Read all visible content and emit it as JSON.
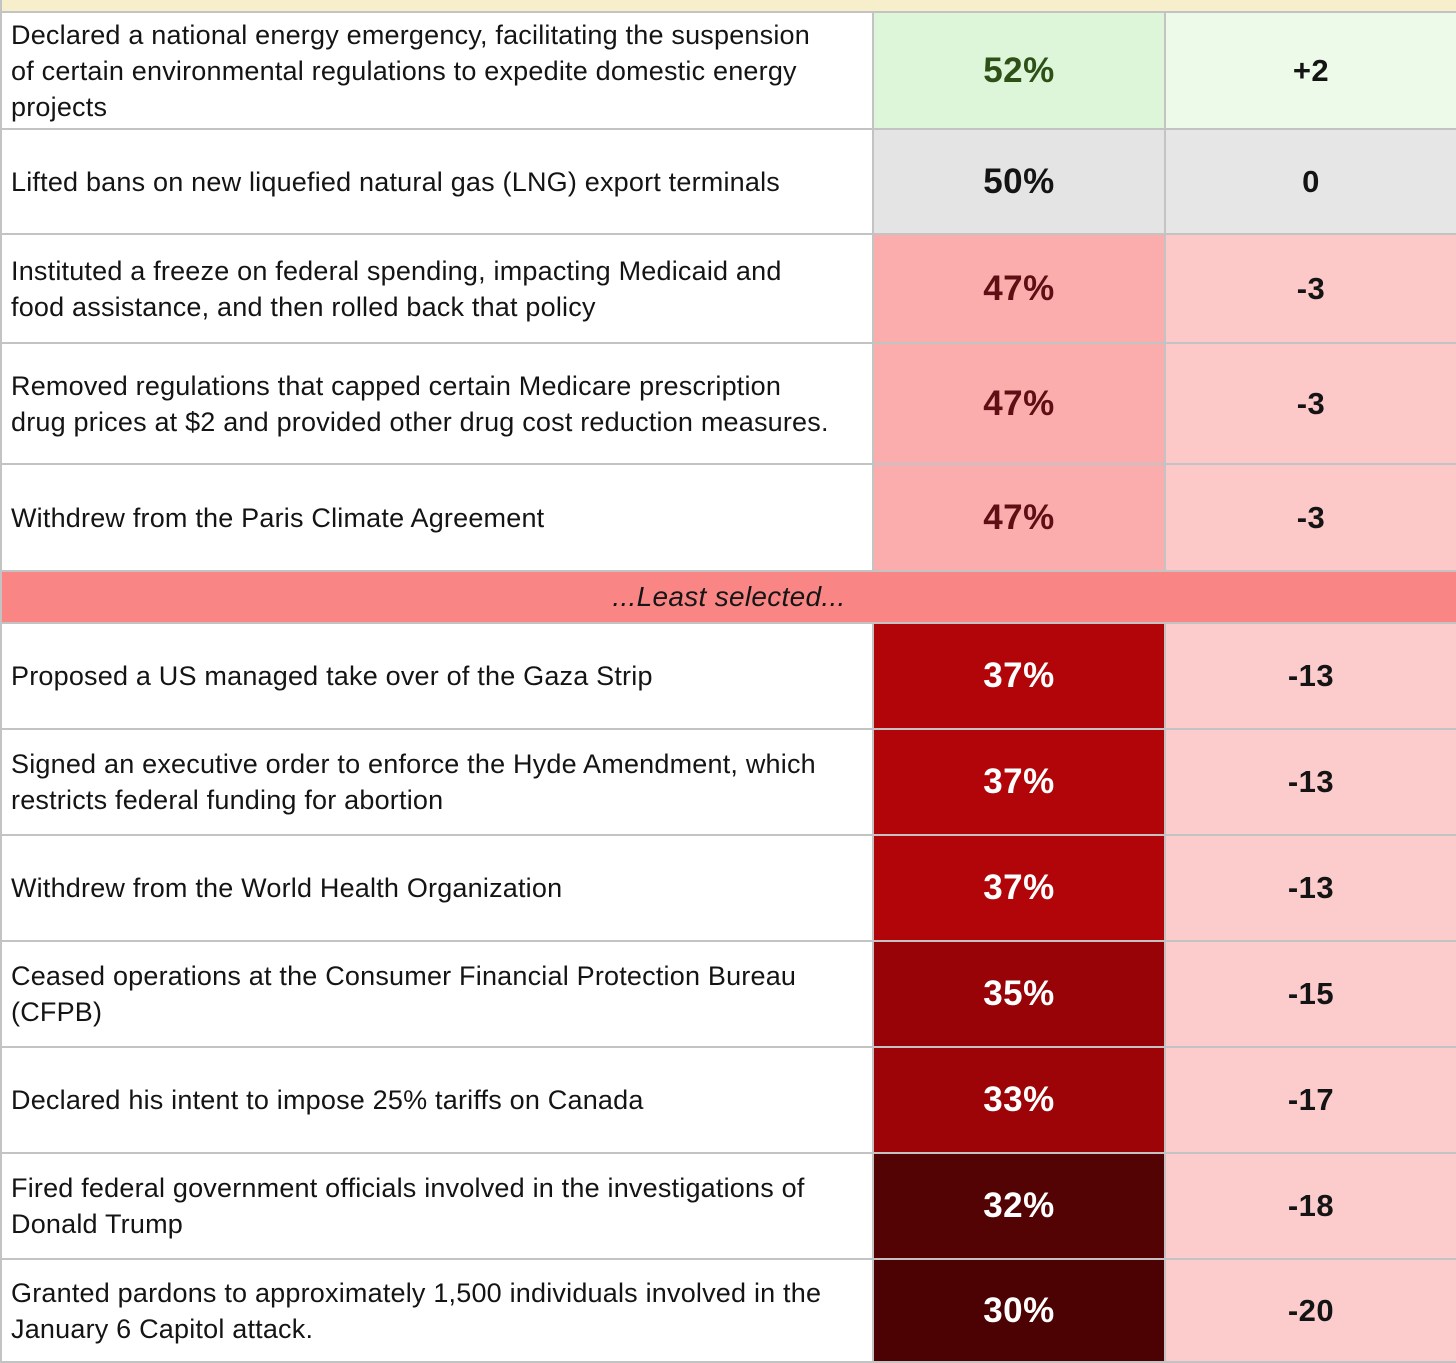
{
  "table": {
    "rows": [
      {
        "desc": "Declared a national energy emergency, facilitating the suspension of certain environmental regulations to expedite domestic energy projects",
        "pct": "52%",
        "diff": "+2",
        "pct_bg": "#ddf5d8",
        "pct_fg": "#2d5016",
        "diff_bg": "#edfae9",
        "diff_fg": "#141414"
      },
      {
        "desc": "Lifted bans on new liquefied natural gas (LNG) export terminals",
        "pct": "50%",
        "diff": "0",
        "pct_bg": "#e4e4e4",
        "pct_fg": "#141414",
        "diff_bg": "#e6e6e6",
        "diff_fg": "#141414"
      },
      {
        "desc": "Instituted a freeze on federal spending, impacting Medicaid and food assistance, and then rolled back that policy",
        "pct": "47%",
        "diff": "-3",
        "pct_bg": "#fbacac",
        "pct_fg": "#5e0f13",
        "diff_bg": "#fcc8c8",
        "diff_fg": "#141414"
      },
      {
        "desc": "Removed regulations that capped certain Medicare prescription drug prices at $2 and provided other drug cost reduction measures.",
        "pct": "47%",
        "diff": "-3",
        "pct_bg": "#fbacac",
        "pct_fg": "#5e0f13",
        "diff_bg": "#fcc8c8",
        "diff_fg": "#141414"
      },
      {
        "desc": "Withdrew from the Paris Climate Agreement",
        "pct": "47%",
        "diff": "-3",
        "pct_bg": "#fbacac",
        "pct_fg": "#5e0f13",
        "diff_bg": "#fcc8c8",
        "diff_fg": "#141414"
      },
      {
        "divider": true,
        "label": "...Least selected..."
      },
      {
        "desc": "Proposed a US managed take over of the Gaza Strip",
        "pct": "37%",
        "diff": "-13",
        "pct_bg": "#b20509",
        "pct_fg": "#ffffff",
        "diff_bg": "#fccbcc",
        "diff_fg": "#141414"
      },
      {
        "desc": "Signed an executive order to enforce the Hyde Amendment, which restricts federal funding for abortion",
        "pct": "37%",
        "diff": "-13",
        "pct_bg": "#b20509",
        "pct_fg": "#ffffff",
        "diff_bg": "#fccbcc",
        "diff_fg": "#141414"
      },
      {
        "desc": "Withdrew from the World Health Organization",
        "pct": "37%",
        "diff": "-13",
        "pct_bg": "#b20509",
        "pct_fg": "#ffffff",
        "diff_bg": "#fccbcc",
        "diff_fg": "#141414"
      },
      {
        "desc": "Ceased operations at the Consumer Financial Protection Bureau (CFPB)",
        "pct": "35%",
        "diff": "-15",
        "pct_bg": "#970306",
        "pct_fg": "#ffffff",
        "diff_bg": "#fccbcc",
        "diff_fg": "#141414"
      },
      {
        "desc": "Declared his intent to impose 25% tariffs on Canada",
        "pct": "33%",
        "diff": "-17",
        "pct_bg": "#9d0407",
        "pct_fg": "#ffffff",
        "diff_bg": "#fccbcc",
        "diff_fg": "#141414"
      },
      {
        "desc": "Fired federal government officials involved in the investigations of Donald Trump",
        "pct": "32%",
        "diff": "-18",
        "pct_bg": "#530304",
        "pct_fg": "#ffffff",
        "diff_bg": "#fccbcc",
        "diff_fg": "#141414"
      },
      {
        "desc": "Granted pardons to approximately 1,500 individuals involved in the January 6 Capitol attack.",
        "pct": "30%",
        "diff": "-20",
        "pct_bg": "#4c0203",
        "pct_fg": "#ffffff",
        "diff_bg": "#fccbcc",
        "diff_fg": "#141414"
      }
    ]
  },
  "colors": {
    "top_strip": "#f7efcb",
    "grid_line": "#c3c3c3",
    "divider_bg": "#fa8585",
    "positive_green_bg": "#ddf5d8",
    "neutral_gray_bg": "#e4e4e4",
    "negative_pink_bg": "#fbacac",
    "negative_dark_red_bg": "#b20509",
    "negative_darkest_red_bg": "#4c0203"
  },
  "chart_data": {
    "type": "table",
    "title": "",
    "labels": [
      "Declared a national energy emergency, facilitating the suspension of certain environmental regulations to expedite domestic energy projects",
      "Lifted bans on new liquefied natural gas (LNG) export terminals",
      "Instituted a freeze on federal spending, impacting Medicaid and food assistance, and then rolled back that policy",
      "Removed regulations that capped certain Medicare prescription drug prices at $2 and provided other drug cost reduction measures.",
      "Withdrew from the Paris Climate Agreement",
      "Proposed a US managed take over of the Gaza Strip",
      "Signed an executive order to enforce the Hyde Amendment, which restricts federal funding for abortion",
      "Withdrew from the World Health Organization",
      "Ceased operations at the Consumer Financial Protection Bureau (CFPB)",
      "Declared his intent to impose 25% tariffs on Canada",
      "Fired federal government officials involved in the investigations of Donald Trump",
      "Granted pardons to approximately 1,500 individuals involved in the January 6 Capitol attack."
    ],
    "percent_selected": [
      52,
      50,
      47,
      47,
      47,
      37,
      37,
      37,
      35,
      33,
      32,
      30
    ],
    "difference": [
      2,
      0,
      -3,
      -3,
      -3,
      -13,
      -13,
      -13,
      -15,
      -17,
      -18,
      -20
    ],
    "section_divider": {
      "after_row": 5,
      "label": "...Least selected..."
    },
    "layout_hints": "heatmap-style colored table; green = above 50, gray = 50, red shades darken as percent decreases"
  }
}
